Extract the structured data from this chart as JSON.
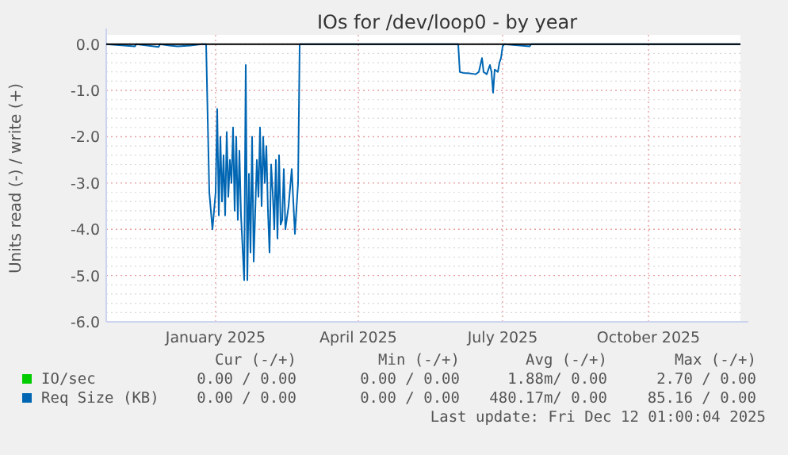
{
  "chart_data": {
    "type": "line",
    "title": "IOs for /dev/loop0 - by year",
    "ylabel": "Units read (-) / write (+)",
    "xlim": [
      "2024-11-07",
      "2025-12-12"
    ],
    "ylim": [
      -6,
      0.2
    ],
    "yticks": [
      {
        "value": 0,
        "label": "0.0"
      },
      {
        "value": -1,
        "label": "-1.0"
      },
      {
        "value": -2,
        "label": "-2.0"
      },
      {
        "value": -3,
        "label": "-3.0"
      },
      {
        "value": -4,
        "label": "-4.0"
      },
      {
        "value": -5,
        "label": "-5.0"
      },
      {
        "value": -6,
        "label": "-6.0"
      }
    ],
    "xticks": [
      {
        "value": "2025-01-15",
        "label": "January 2025"
      },
      {
        "value": "2025-04-15",
        "label": "April 2025"
      },
      {
        "value": "2025-07-15",
        "label": "July 2025"
      },
      {
        "value": "2025-10-15",
        "label": "October 2025"
      }
    ],
    "grid": true,
    "legend": "bottom left",
    "line_style": "solid",
    "ref_lines": [
      {
        "axis": "y",
        "value": 0,
        "color": "#000000"
      }
    ],
    "series": [
      {
        "name": "IO/sec",
        "color": "#00cc00"
      },
      {
        "name": "Req Size (KB)",
        "color": "#0066b3",
        "x": [
          "2024-11-07",
          "2024-11-25",
          "2024-11-26",
          "2024-11-30",
          "2024-12-10",
          "2024-12-11",
          "2024-12-17",
          "2024-12-22",
          "2024-12-30",
          "2025-01-06",
          "2025-01-09",
          "2025-01-11",
          "2025-01-13",
          "2025-01-15",
          "2025-01-16",
          "2025-01-17",
          "2025-01-18",
          "2025-01-19",
          "2025-01-20",
          "2025-01-21",
          "2025-01-22",
          "2025-01-23",
          "2025-01-24",
          "2025-01-25",
          "2025-01-26",
          "2025-01-27",
          "2025-01-28",
          "2025-01-29",
          "2025-01-30",
          "2025-01-31",
          "2025-02-02",
          "2025-02-03",
          "2025-02-04",
          "2025-02-05",
          "2025-02-06",
          "2025-02-07",
          "2025-02-08",
          "2025-02-10",
          "2025-02-11",
          "2025-02-12",
          "2025-02-13",
          "2025-02-14",
          "2025-02-15",
          "2025-02-16",
          "2025-02-17",
          "2025-02-18",
          "2025-02-19",
          "2025-02-20",
          "2025-02-21",
          "2025-02-22",
          "2025-02-23",
          "2025-02-24",
          "2025-02-25",
          "2025-02-26",
          "2025-02-27",
          "2025-02-28",
          "2025-03-02",
          "2025-03-04",
          "2025-03-06",
          "2025-03-08",
          "2025-03-09",
          "2025-06-17",
          "2025-06-18",
          "2025-06-20",
          "2025-06-24",
          "2025-06-28",
          "2025-06-30",
          "2025-07-02",
          "2025-07-03",
          "2025-07-05",
          "2025-07-07",
          "2025-07-08",
          "2025-07-09",
          "2025-07-10",
          "2025-07-12",
          "2025-07-13",
          "2025-07-14",
          "2025-07-15",
          "2025-07-16",
          "2025-08-01",
          "2025-08-02",
          "2025-12-12"
        ],
        "values": [
          0,
          -0.05,
          0,
          -0.02,
          -0.06,
          0,
          -0.03,
          -0.05,
          -0.03,
          0,
          0,
          -3.2,
          -4.0,
          -3.2,
          -1.4,
          -3.7,
          -2.0,
          -3.4,
          -2.4,
          -3.7,
          -1.9,
          -3.3,
          -2.5,
          -3.0,
          -1.8,
          -3.6,
          -2.0,
          -3.8,
          -2.3,
          -3.7,
          -5.1,
          -0.45,
          -5.1,
          -2.8,
          -4.5,
          -2.0,
          -4.7,
          -2.5,
          -3.3,
          -1.8,
          -3.5,
          -2.0,
          -3.0,
          -2.2,
          -3.6,
          -4.5,
          -2.6,
          -3.2,
          -4.0,
          -2.5,
          -4.2,
          -2.4,
          -3.9,
          -3.8,
          -2.7,
          -4.0,
          -3.5,
          -2.7,
          -4.1,
          -3.0,
          0,
          0,
          -0.6,
          -0.62,
          -0.63,
          -0.65,
          -0.6,
          -0.3,
          -0.6,
          -0.65,
          -0.45,
          -0.6,
          -1.05,
          -0.55,
          -0.6,
          -0.4,
          -0.3,
          -0.05,
          0,
          -0.05,
          0,
          0
        ]
      }
    ],
    "annotations": [
      "Cur (-/+)",
      "Min (-/+)",
      "Avg (-/+)",
      "Max (-/+)",
      "0.00 / 0.00",
      "0.00 / 0.00",
      "1.88m/ 0.00",
      "2.70 / 0.00",
      "0.00 / 0.00",
      "0.00 / 0.00",
      "480.17m/ 0.00",
      "85.16 / 0.00",
      "Last update: Fri Dec 12 01:00:04 2025"
    ]
  }
}
